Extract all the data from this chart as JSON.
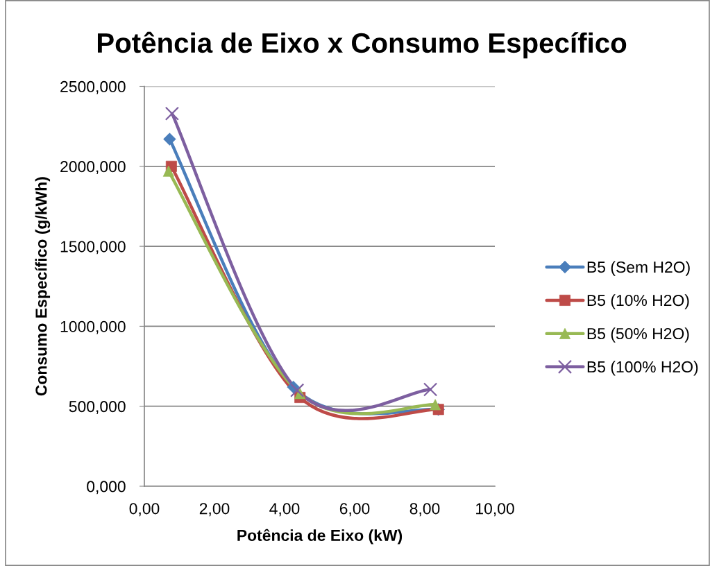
{
  "chart_data": {
    "type": "line",
    "title": "Potência de Eixo x Consumo Específico",
    "xlabel": "Potência de Eixo (kW)",
    "ylabel": "Consumo Específico (g/kWh)",
    "series": [
      {
        "name": "B5 (Sem H2O)",
        "color": "#4a7ebb",
        "marker": "diamond",
        "x": [
          0.72,
          4.25,
          8.39
        ],
        "values": [
          2170,
          620,
          480
        ]
      },
      {
        "name": "B5 (10% H2O)",
        "color": "#be4b48",
        "marker": "square",
        "x": [
          0.77,
          4.44,
          8.39
        ],
        "values": [
          2000,
          555,
          480
        ]
      },
      {
        "name": "B5 (50% H2O)",
        "color": "#98b954",
        "marker": "triangle",
        "x": [
          0.69,
          4.44,
          8.3
        ],
        "values": [
          1970,
          580,
          510
        ]
      },
      {
        "name": "B5 (100% H2O)",
        "color": "#7d5fa0",
        "marker": "cross",
        "x": [
          0.79,
          4.36,
          8.16
        ],
        "values": [
          2330,
          600,
          605
        ]
      }
    ],
    "xlim": [
      0,
      10
    ],
    "xticks": [
      {
        "value": 0,
        "label": "0,00"
      },
      {
        "value": 2,
        "label": "2,00"
      },
      {
        "value": 4,
        "label": "4,00"
      },
      {
        "value": 6,
        "label": "6,00"
      },
      {
        "value": 8,
        "label": "8,00"
      },
      {
        "value": 10,
        "label": "10,00"
      }
    ],
    "ylim": [
      0,
      2500
    ],
    "yticks": [
      {
        "value": 0,
        "label": "0,000"
      },
      {
        "value": 500,
        "label": "500,000"
      },
      {
        "value": 1000,
        "label": "1000,000"
      },
      {
        "value": 1500,
        "label": "1500,000"
      },
      {
        "value": 2000,
        "label": "2000,000"
      },
      {
        "value": 2500,
        "label": "2500,000"
      }
    ],
    "grid": "y",
    "legend": "right",
    "line_style": "solid"
  }
}
